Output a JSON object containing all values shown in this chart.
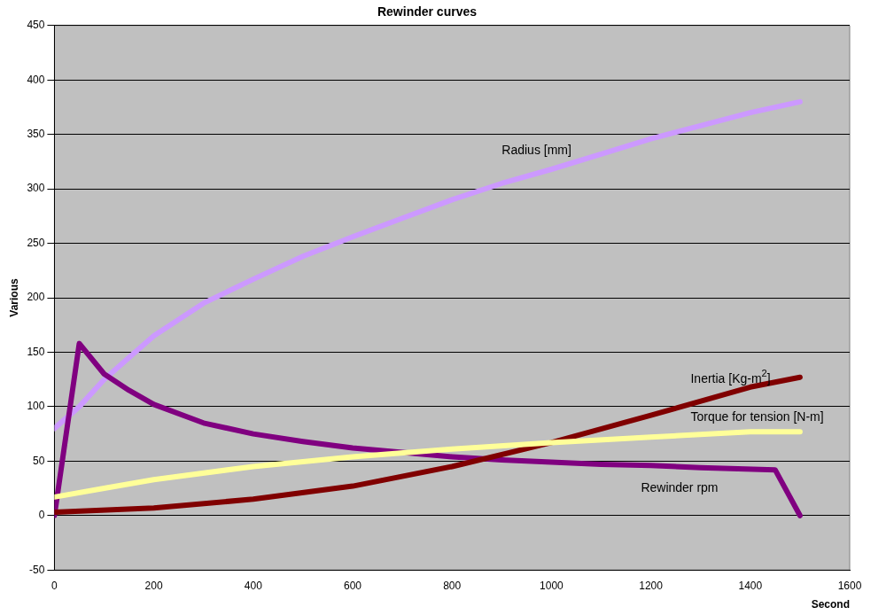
{
  "chart_data": {
    "type": "line",
    "title": "Rewinder curves",
    "xlabel": "Second",
    "ylabel": "Various",
    "xlim": [
      0,
      1600
    ],
    "xticks": [
      0,
      200,
      400,
      600,
      800,
      1000,
      1200,
      1400,
      1600
    ],
    "ylim": [
      -50,
      450
    ],
    "yticks": [
      -50,
      0,
      50,
      100,
      150,
      200,
      250,
      300,
      350,
      400,
      450
    ],
    "grid": "y",
    "legend": false,
    "marker": "none",
    "line_style": "solid",
    "series": [
      {
        "name": "Radius [mm]",
        "color": "#cc99ff",
        "x": [
          0,
          50,
          100,
          150,
          200,
          300,
          400,
          500,
          600,
          700,
          800,
          900,
          1000,
          1100,
          1200,
          1300,
          1400,
          1500
        ],
        "values": [
          80,
          100,
          125,
          145,
          165,
          195,
          217,
          238,
          256,
          273,
          290,
          305,
          318,
          332,
          346,
          358,
          370,
          380
        ]
      },
      {
        "name": "Rewinder rpm",
        "color": "#800080",
        "x": [
          0,
          50,
          100,
          150,
          200,
          300,
          400,
          500,
          600,
          700,
          800,
          900,
          1000,
          1100,
          1200,
          1300,
          1450,
          1500
        ],
        "values": [
          0,
          158,
          130,
          115,
          102,
          85,
          75,
          68,
          62,
          58,
          54,
          51,
          49,
          47,
          46,
          44,
          42,
          0
        ]
      },
      {
        "name": "Inertia [Kg-m$^{2}$]",
        "color": "#800000",
        "x": [
          0,
          200,
          400,
          600,
          800,
          1000,
          1200,
          1400,
          1500
        ],
        "values": [
          3,
          7,
          15,
          27,
          45,
          67,
          92,
          118,
          127
        ]
      },
      {
        "name": "Torque for tension [N-m]",
        "color": "#ffff99",
        "x": [
          0,
          100,
          200,
          400,
          600,
          800,
          1000,
          1200,
          1400,
          1500
        ],
        "values": [
          17,
          25,
          33,
          45,
          54,
          61,
          67,
          72,
          77,
          77
        ]
      }
    ]
  }
}
